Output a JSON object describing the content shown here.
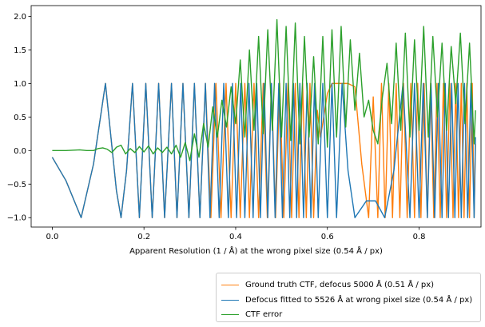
{
  "chart_data": {
    "type": "line",
    "xlabel": "Apparent Resolution (1 / Å) at the wrong pixel size (0.54 Å / px)",
    "ylabel": "",
    "title": "",
    "xlim": [
      -0.046,
      0.935
    ],
    "ylim": [
      -1.14,
      2.16
    ],
    "xticks": [
      0.0,
      0.2,
      0.4,
      0.6,
      0.8
    ],
    "xtick_labels": [
      "0.0",
      "0.2",
      "0.4",
      "0.6",
      "0.8"
    ],
    "yticks": [
      -1.0,
      -0.5,
      0.0,
      0.5,
      1.0,
      1.5,
      2.0
    ],
    "ytick_labels": [
      "−1.0",
      "−0.5",
      "0.0",
      "0.5",
      "1.0",
      "1.5",
      "2.0"
    ],
    "grid": false,
    "legend_position": "below-right",
    "series": [
      {
        "name": "Ground truth CTF, defocus 5000 Å (0.51 Å / px)",
        "color": "#ff7f0e",
        "x": [
          0.0,
          0.03,
          0.063,
          0.09,
          0.116,
          0.14,
          0.15,
          0.162,
          0.175,
          0.19,
          0.204,
          0.218,
          0.232,
          0.245,
          0.26,
          0.272,
          0.285,
          0.298,
          0.31,
          0.322,
          0.334,
          0.346,
          0.357,
          0.368,
          0.379,
          0.39,
          0.4,
          0.41,
          0.42,
          0.43,
          0.44,
          0.45,
          0.46,
          0.469,
          0.478,
          0.487,
          0.496,
          0.505,
          0.514,
          0.522,
          0.53,
          0.538,
          0.546,
          0.554,
          0.562,
          0.57,
          0.578,
          0.585,
          0.592,
          0.6,
          0.61,
          0.62,
          0.632,
          0.645,
          0.66,
          0.675,
          0.69,
          0.7,
          0.71,
          0.718,
          0.726,
          0.734,
          0.742,
          0.75,
          0.758,
          0.766,
          0.774,
          0.782,
          0.79,
          0.797,
          0.804,
          0.811,
          0.818,
          0.825,
          0.832,
          0.839,
          0.846,
          0.853,
          0.86,
          0.867,
          0.874,
          0.88,
          0.886,
          0.892,
          0.898,
          0.904,
          0.91,
          0.916,
          0.92,
          0.923
        ],
        "y": [
          -0.1,
          -0.45,
          -1.0,
          -0.2,
          1.0,
          -0.6,
          -1.0,
          -0.3,
          1.0,
          -1.0,
          1.0,
          -1.0,
          1.0,
          -1.0,
          1.0,
          -1.0,
          1.0,
          -1.0,
          1.0,
          -1.0,
          1.0,
          -1.0,
          1.0,
          -1.0,
          1.0,
          -1.0,
          1.0,
          -1.0,
          1.0,
          -1.0,
          1.0,
          -1.0,
          1.0,
          -1.0,
          1.0,
          -1.0,
          1.0,
          -1.0,
          1.0,
          -1.0,
          1.0,
          -1.0,
          1.0,
          -1.0,
          1.0,
          -1.0,
          0.6,
          0.2,
          0.5,
          0.85,
          1.0,
          1.0,
          1.0,
          1.0,
          0.95,
          -0.2,
          -1.0,
          0.8,
          -1.0,
          1.0,
          -1.0,
          1.0,
          -1.0,
          1.0,
          -1.0,
          1.0,
          -1.0,
          1.0,
          -1.0,
          1.0,
          -1.0,
          1.0,
          -1.0,
          1.0,
          -1.0,
          1.0,
          -1.0,
          1.0,
          -1.0,
          1.0,
          -1.0,
          1.0,
          -1.0,
          1.0,
          -1.0,
          1.0,
          -1.0,
          1.0,
          -1.0,
          0.1
        ]
      },
      {
        "name": "Defocus fitted to 5526 Å at wrong pixel size (0.54 Å / px)",
        "color": "#1f77b4",
        "x": [
          0.0,
          0.03,
          0.063,
          0.09,
          0.116,
          0.14,
          0.15,
          0.162,
          0.175,
          0.19,
          0.204,
          0.218,
          0.232,
          0.245,
          0.26,
          0.272,
          0.285,
          0.298,
          0.31,
          0.322,
          0.334,
          0.344,
          0.354,
          0.364,
          0.374,
          0.384,
          0.393,
          0.402,
          0.411,
          0.42,
          0.429,
          0.438,
          0.446,
          0.454,
          0.462,
          0.47,
          0.478,
          0.486,
          0.494,
          0.502,
          0.51,
          0.518,
          0.526,
          0.533,
          0.54,
          0.548,
          0.556,
          0.564,
          0.572,
          0.58,
          0.59,
          0.6,
          0.61,
          0.62,
          0.632,
          0.645,
          0.66,
          0.685,
          0.705,
          0.725,
          0.745,
          0.765,
          0.78,
          0.79,
          0.8,
          0.809,
          0.818,
          0.826,
          0.834,
          0.842,
          0.85,
          0.857,
          0.864,
          0.871,
          0.878,
          0.885,
          0.892,
          0.899,
          0.906,
          0.913,
          0.92,
          0.923
        ],
        "y": [
          -0.1,
          -0.45,
          -1.0,
          -0.2,
          1.0,
          -0.6,
          -1.0,
          -0.3,
          1.0,
          -1.0,
          1.0,
          -1.0,
          1.0,
          -1.0,
          1.0,
          -1.0,
          1.0,
          -1.0,
          1.0,
          -1.0,
          1.0,
          -1.0,
          1.0,
          -1.0,
          1.0,
          -1.0,
          1.0,
          -1.0,
          1.0,
          -1.0,
          1.0,
          -1.0,
          1.0,
          -1.0,
          1.0,
          -1.0,
          1.0,
          -1.0,
          1.0,
          -1.0,
          1.0,
          -1.0,
          1.0,
          -1.0,
          1.0,
          -1.0,
          1.0,
          -1.0,
          1.0,
          -1.0,
          1.0,
          -1.0,
          1.0,
          -1.0,
          1.0,
          -0.3,
          -1.0,
          -0.75,
          -0.75,
          -1.0,
          -0.3,
          1.0,
          -1.0,
          1.0,
          -1.0,
          1.0,
          -1.0,
          1.0,
          -1.0,
          1.0,
          -1.0,
          1.0,
          -1.0,
          1.0,
          -1.0,
          1.0,
          -1.0,
          1.0,
          -1.0,
          1.0,
          -1.0,
          0.2
        ]
      },
      {
        "name": "CTF error",
        "color": "#2ca02c",
        "x": [
          0.0,
          0.03,
          0.06,
          0.075,
          0.09,
          0.1,
          0.11,
          0.12,
          0.13,
          0.14,
          0.15,
          0.16,
          0.17,
          0.18,
          0.19,
          0.2,
          0.21,
          0.22,
          0.23,
          0.24,
          0.25,
          0.26,
          0.27,
          0.28,
          0.29,
          0.3,
          0.31,
          0.32,
          0.33,
          0.34,
          0.35,
          0.36,
          0.37,
          0.38,
          0.39,
          0.4,
          0.41,
          0.42,
          0.43,
          0.44,
          0.45,
          0.46,
          0.47,
          0.48,
          0.49,
          0.5,
          0.51,
          0.52,
          0.53,
          0.54,
          0.55,
          0.56,
          0.57,
          0.58,
          0.59,
          0.6,
          0.61,
          0.62,
          0.63,
          0.64,
          0.65,
          0.66,
          0.67,
          0.68,
          0.69,
          0.7,
          0.71,
          0.72,
          0.73,
          0.74,
          0.75,
          0.76,
          0.77,
          0.78,
          0.79,
          0.8,
          0.81,
          0.82,
          0.83,
          0.84,
          0.85,
          0.86,
          0.87,
          0.88,
          0.89,
          0.9,
          0.91,
          0.92,
          0.923
        ],
        "y": [
          0.0,
          0.0,
          0.01,
          0.0,
          0.0,
          0.03,
          0.04,
          0.02,
          -0.03,
          0.05,
          0.08,
          -0.05,
          0.03,
          -0.03,
          0.06,
          -0.02,
          0.07,
          -0.05,
          0.04,
          -0.03,
          0.05,
          -0.05,
          0.08,
          -0.1,
          0.12,
          -0.15,
          0.25,
          -0.1,
          0.4,
          0.05,
          0.65,
          0.2,
          0.75,
          0.35,
          0.95,
          0.4,
          1.35,
          0.2,
          1.5,
          0.3,
          1.7,
          0.25,
          1.8,
          0.3,
          1.95,
          0.2,
          1.85,
          0.15,
          1.9,
          0.1,
          1.7,
          0.2,
          1.4,
          0.1,
          1.7,
          0.05,
          1.8,
          0.2,
          1.85,
          0.35,
          1.65,
          0.6,
          1.45,
          0.5,
          0.75,
          0.3,
          0.1,
          0.8,
          1.3,
          0.4,
          1.6,
          0.3,
          1.75,
          0.2,
          1.65,
          0.3,
          1.85,
          0.2,
          1.7,
          0.5,
          1.6,
          0.3,
          1.55,
          0.7,
          1.75,
          0.4,
          1.6,
          0.1,
          0.6
        ]
      }
    ]
  }
}
